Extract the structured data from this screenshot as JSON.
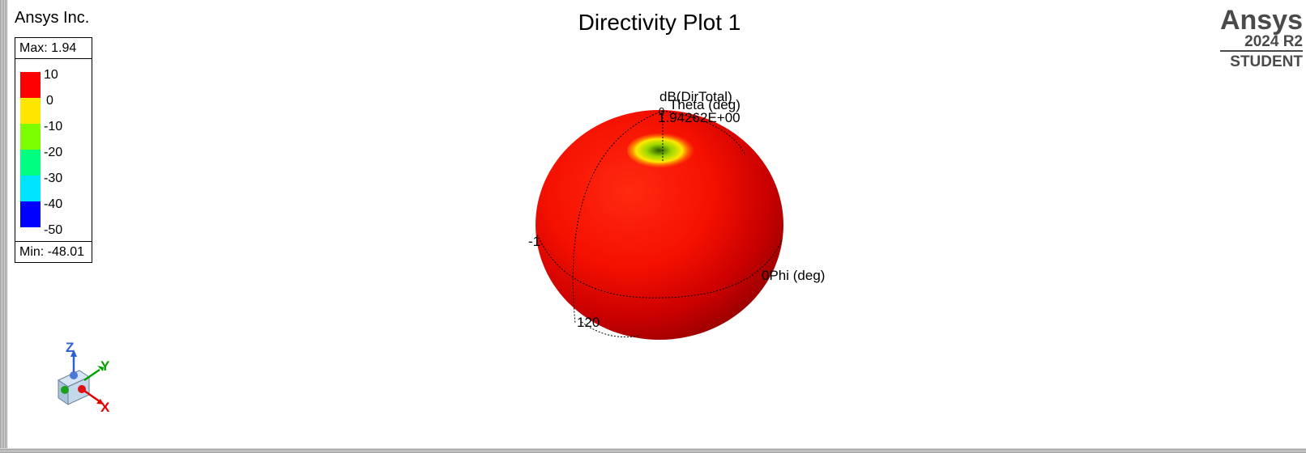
{
  "company": "Ansys Inc.",
  "plot_title": "Directivity Plot 1",
  "legend": {
    "max_label": "Max: 1.94",
    "min_label": "Min: -48.01",
    "ticks": [
      "10",
      "0",
      "-10",
      "-20",
      "-30",
      "-40",
      "-50"
    ],
    "colors": [
      "#ff0000",
      "#ffe600",
      "#7cff00",
      "#00ff80",
      "#00e5ff",
      "#0000ff"
    ]
  },
  "logo": {
    "brand": "Ansys",
    "version": "2024 R2",
    "edition": "STUDENT"
  },
  "plot": {
    "quantity_label": "dB(DirTotal)",
    "theta_label": "Theta (deg)",
    "max_value_label": "1.94262E+00",
    "phi_label": "0Phi (deg)",
    "theta_tick_0": "0",
    "theta_tick_neg": "-1",
    "theta_tick_120": "120"
  },
  "axes": {
    "x": "X",
    "y": "Y",
    "z": "Z",
    "x_color": "#e00000",
    "y_color": "#00a000",
    "z_color": "#3060d0"
  }
}
